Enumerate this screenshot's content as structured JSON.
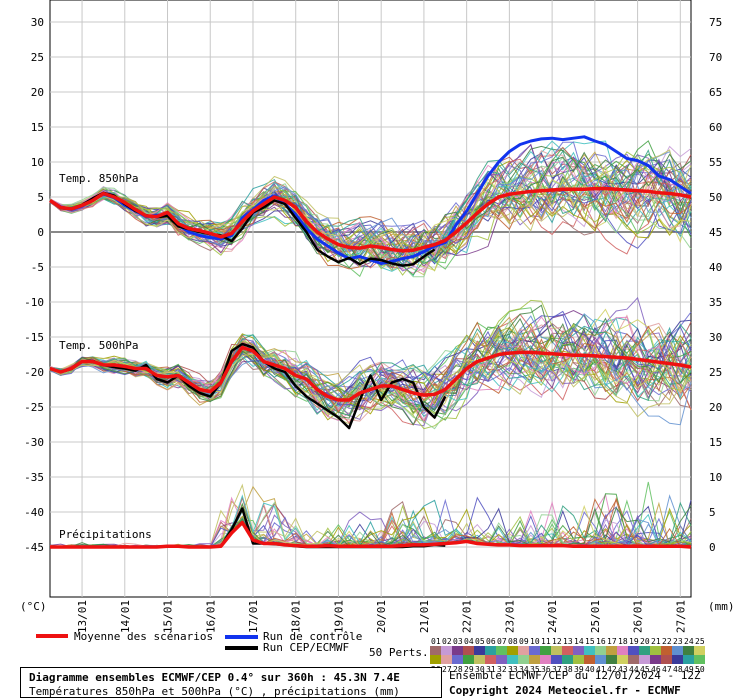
{
  "header": {
    "title": "Diagramme ensembles ECMWF/CEP 0.4° sur 360h : 45.3N 7.4E",
    "subtitle": "Températures 850hPa et 500hPa (°C) , précipitations (mm)",
    "ensemble_info": "Ensemble ECMWF/CEP du 12/01/2024 - 12Z",
    "copyright": "Copyright 2024 Meteociel.fr - ECMWF"
  },
  "legend": {
    "mean_label": "Moyenne des scénarios",
    "control_label": "Run de contrôle",
    "oper_label": "Run CEP/ECMWF",
    "perts_label": "50 Perts.",
    "mean_color": "#ee1111",
    "control_color": "#1133ee",
    "oper_color": "#000000",
    "pert_numbers_row1": [
      "01",
      "02",
      "03",
      "04",
      "05",
      "06",
      "07",
      "08",
      "09",
      "10",
      "11",
      "12",
      "13",
      "14",
      "15",
      "16",
      "17",
      "18",
      "19",
      "20",
      "21",
      "22",
      "23",
      "24",
      "25"
    ],
    "pert_numbers_row2": [
      "26",
      "27",
      "28",
      "29",
      "30",
      "31",
      "32",
      "33",
      "34",
      "35",
      "36",
      "37",
      "38",
      "39",
      "40",
      "41",
      "42",
      "43",
      "44",
      "45",
      "46",
      "47",
      "48",
      "49",
      "50"
    ],
    "pert_colors": [
      "#a06a6a",
      "#c69ad6",
      "#7a3a8a",
      "#b05050",
      "#3a3a9a",
      "#2aa0a0",
      "#60c060",
      "#a0a000",
      "#e0a0a0",
      "#6a6ad0",
      "#40a040",
      "#c0c060",
      "#d06060",
      "#8060c0",
      "#40c0c0",
      "#90d090",
      "#c0a040",
      "#e080c0",
      "#5050c0",
      "#30a080",
      "#a0c040",
      "#c06030",
      "#6090d0",
      "#408040",
      "#d0d060"
    ]
  },
  "chart_data": {
    "type": "line",
    "left_axis_unit": "(°C)",
    "right_axis_unit": "(mm)",
    "left_ticks": [
      30,
      25,
      20,
      15,
      10,
      5,
      0,
      -5,
      -10,
      -15,
      -20,
      -25,
      -30,
      -35,
      -40,
      -45
    ],
    "right_ticks": [
      75,
      70,
      65,
      60,
      55,
      50,
      45,
      40,
      35,
      30,
      25,
      20,
      15,
      10,
      5,
      0
    ],
    "x_dates": [
      "13/01",
      "14/01",
      "15/01",
      "16/01",
      "17/01",
      "18/01",
      "19/01",
      "20/01",
      "21/01",
      "22/01",
      "23/01",
      "24/01",
      "25/01",
      "26/01",
      "27/01"
    ],
    "section_labels": {
      "t850": "Temp. 850hPa",
      "t500": "Temp. 500hPa",
      "precip": "Précipitations"
    },
    "hours": [
      0,
      6,
      12,
      18,
      24,
      30,
      36,
      42,
      48,
      54,
      60,
      66,
      72,
      78,
      84,
      90,
      96,
      102,
      108,
      114,
      120,
      126,
      132,
      138,
      144,
      150,
      156,
      162,
      168,
      174,
      180,
      186,
      192,
      198,
      204,
      210,
      216,
      222,
      228,
      234,
      240,
      246,
      252,
      258,
      264,
      270,
      276,
      282,
      288,
      294,
      300,
      306,
      312,
      318,
      324,
      330,
      336,
      342,
      348,
      354,
      360
    ],
    "series": [
      {
        "name": "Moyenne des scénarios",
        "level": "t850",
        "values": [
          4.5,
          3.5,
          3.3,
          3.8,
          4.5,
          5.5,
          5,
          4.2,
          3.2,
          2.3,
          2.2,
          2.8,
          1.2,
          0.5,
          0.2,
          -0.2,
          -0.7,
          -0.2,
          1.5,
          3,
          4,
          5,
          4.5,
          3.5,
          1.5,
          0,
          -1,
          -1.8,
          -2.2,
          -2.3,
          -2,
          -2.2,
          -2.5,
          -2.7,
          -2.6,
          -2.2,
          -1.8,
          -1.2,
          0,
          1.3,
          2.7,
          4,
          5,
          5.4,
          5.6,
          5.8,
          5.9,
          6,
          6.1,
          6.1,
          6.1,
          6.2,
          6.2,
          6.1,
          6,
          5.9,
          5.8,
          5.6,
          5.5,
          5.3,
          5
        ]
      },
      {
        "name": "Run de contrôle",
        "level": "t850",
        "values": [
          4.5,
          3.6,
          3.2,
          3.7,
          4.6,
          5.4,
          4.9,
          3.8,
          3,
          2.2,
          2.4,
          2.5,
          1,
          0,
          -0.5,
          -0.8,
          -1,
          -0.5,
          2,
          3.2,
          4.5,
          5.2,
          4,
          2.5,
          0.5,
          -1,
          -2,
          -3,
          -3.8,
          -3.5,
          -4,
          -4.5,
          -4.2,
          -3.8,
          -3.5,
          -2.8,
          -2,
          -1.5,
          1,
          3,
          5.5,
          8,
          10,
          11.5,
          12.5,
          13,
          13.3,
          13.4,
          13.2,
          13.4,
          13.6,
          13,
          12.5,
          11.5,
          10.5,
          10.2,
          9.5,
          8,
          7.5,
          6.5,
          5.5
        ]
      },
      {
        "name": "Run CEP/ECMWF",
        "level": "t850",
        "values": [
          4.5,
          3.4,
          3.3,
          3.9,
          4.8,
          5.6,
          5.2,
          4,
          3,
          2.4,
          2.1,
          2.3,
          0.8,
          0.4,
          0,
          -0.3,
          -0.5,
          -1.3,
          0.5,
          2.8,
          3.5,
          4.5,
          4,
          2,
          0,
          -2.5,
          -3.5,
          -4.3,
          -3.7,
          -4.6,
          -3.8,
          -4,
          -4.5,
          -4.8,
          -4.6,
          -3.5,
          -2.5,
          null,
          null,
          null,
          null,
          null,
          null,
          null,
          null,
          null,
          null,
          null,
          null,
          null,
          null,
          null,
          null,
          null,
          null,
          null,
          null,
          null,
          null,
          null,
          null
        ]
      },
      {
        "name": "Moyenne des scénarios",
        "level": "t500",
        "values": [
          -19.5,
          -20,
          -19.5,
          -18.5,
          -18.5,
          -19,
          -19,
          -19.2,
          -19.5,
          -19.5,
          -20.5,
          -20.7,
          -20.5,
          -21.5,
          -22.5,
          -22.8,
          -21.5,
          -18.5,
          -16.5,
          -17,
          -18.5,
          -19,
          -19.5,
          -20.5,
          -21,
          -22.5,
          -23.5,
          -24,
          -24,
          -23,
          -22.5,
          -22,
          -22,
          -22.5,
          -23,
          -23.3,
          -23.2,
          -22.5,
          -21,
          -19.5,
          -18.5,
          -18,
          -17.5,
          -17.3,
          -17.2,
          -17.2,
          -17.3,
          -17.4,
          -17.5,
          -17.6,
          -17.6,
          -17.7,
          -17.8,
          -17.9,
          -18,
          -18.2,
          -18.4,
          -18.6,
          -18.8,
          -19,
          -19.3
        ]
      },
      {
        "name": "Run CEP/ECMWF",
        "level": "t500",
        "values": [
          -19.5,
          -20,
          -19.6,
          -18.5,
          -18.4,
          -19,
          -19.3,
          -19.5,
          -19.8,
          -19,
          -21,
          -21.5,
          -20.5,
          -22,
          -23,
          -23.5,
          -21.5,
          -17,
          -16,
          -16.5,
          -18.5,
          -19.5,
          -20,
          -22,
          -23.5,
          -24.5,
          -25.5,
          -26.5,
          -28,
          -24,
          -20.5,
          -24,
          -21.5,
          -21,
          -21.5,
          -25,
          -26.5,
          -23.5,
          null,
          null,
          null,
          null,
          null,
          null,
          null,
          null,
          null,
          null,
          null,
          null,
          null,
          null,
          null,
          null,
          null,
          null,
          null,
          null,
          null,
          null,
          null
        ]
      },
      {
        "name": "Moyenne des scénarios",
        "level": "precip",
        "unit": "mm",
        "values": [
          0,
          0,
          0,
          0,
          0,
          0,
          0,
          0,
          0,
          0,
          0,
          0.1,
          0.1,
          0,
          0,
          0,
          0.1,
          2,
          3.5,
          1,
          0.5,
          0.5,
          0.3,
          0.2,
          0.1,
          0.1,
          0.2,
          0.1,
          0.1,
          0.1,
          0.1,
          0.1,
          0.1,
          0.2,
          0.3,
          0.3,
          0.4,
          0.5,
          0.6,
          0.8,
          0.5,
          0.4,
          0.3,
          0.3,
          0.2,
          0.2,
          0.2,
          0.2,
          0.2,
          0.1,
          0.1,
          0.1,
          0.1,
          0.1,
          0.1,
          0.1,
          0.1,
          0.1,
          0.1,
          0.1,
          0
        ]
      },
      {
        "name": "Run CEP/ECMWF",
        "level": "precip",
        "unit": "mm",
        "values": [
          null,
          null,
          null,
          null,
          null,
          null,
          null,
          null,
          null,
          null,
          null,
          0.1,
          0.1,
          0,
          0,
          0,
          0.1,
          2.5,
          5.5,
          0.5,
          0.5,
          0.4,
          0.3,
          0.1,
          0,
          0,
          0,
          0,
          0,
          0,
          0,
          0,
          0,
          0,
          0.1,
          0.1,
          0.3,
          0.2,
          null,
          null,
          null,
          null,
          null,
          null,
          null,
          null,
          null,
          null,
          null,
          null,
          null,
          null,
          null,
          null,
          null,
          null,
          null,
          null,
          null,
          null,
          null
        ]
      }
    ]
  }
}
